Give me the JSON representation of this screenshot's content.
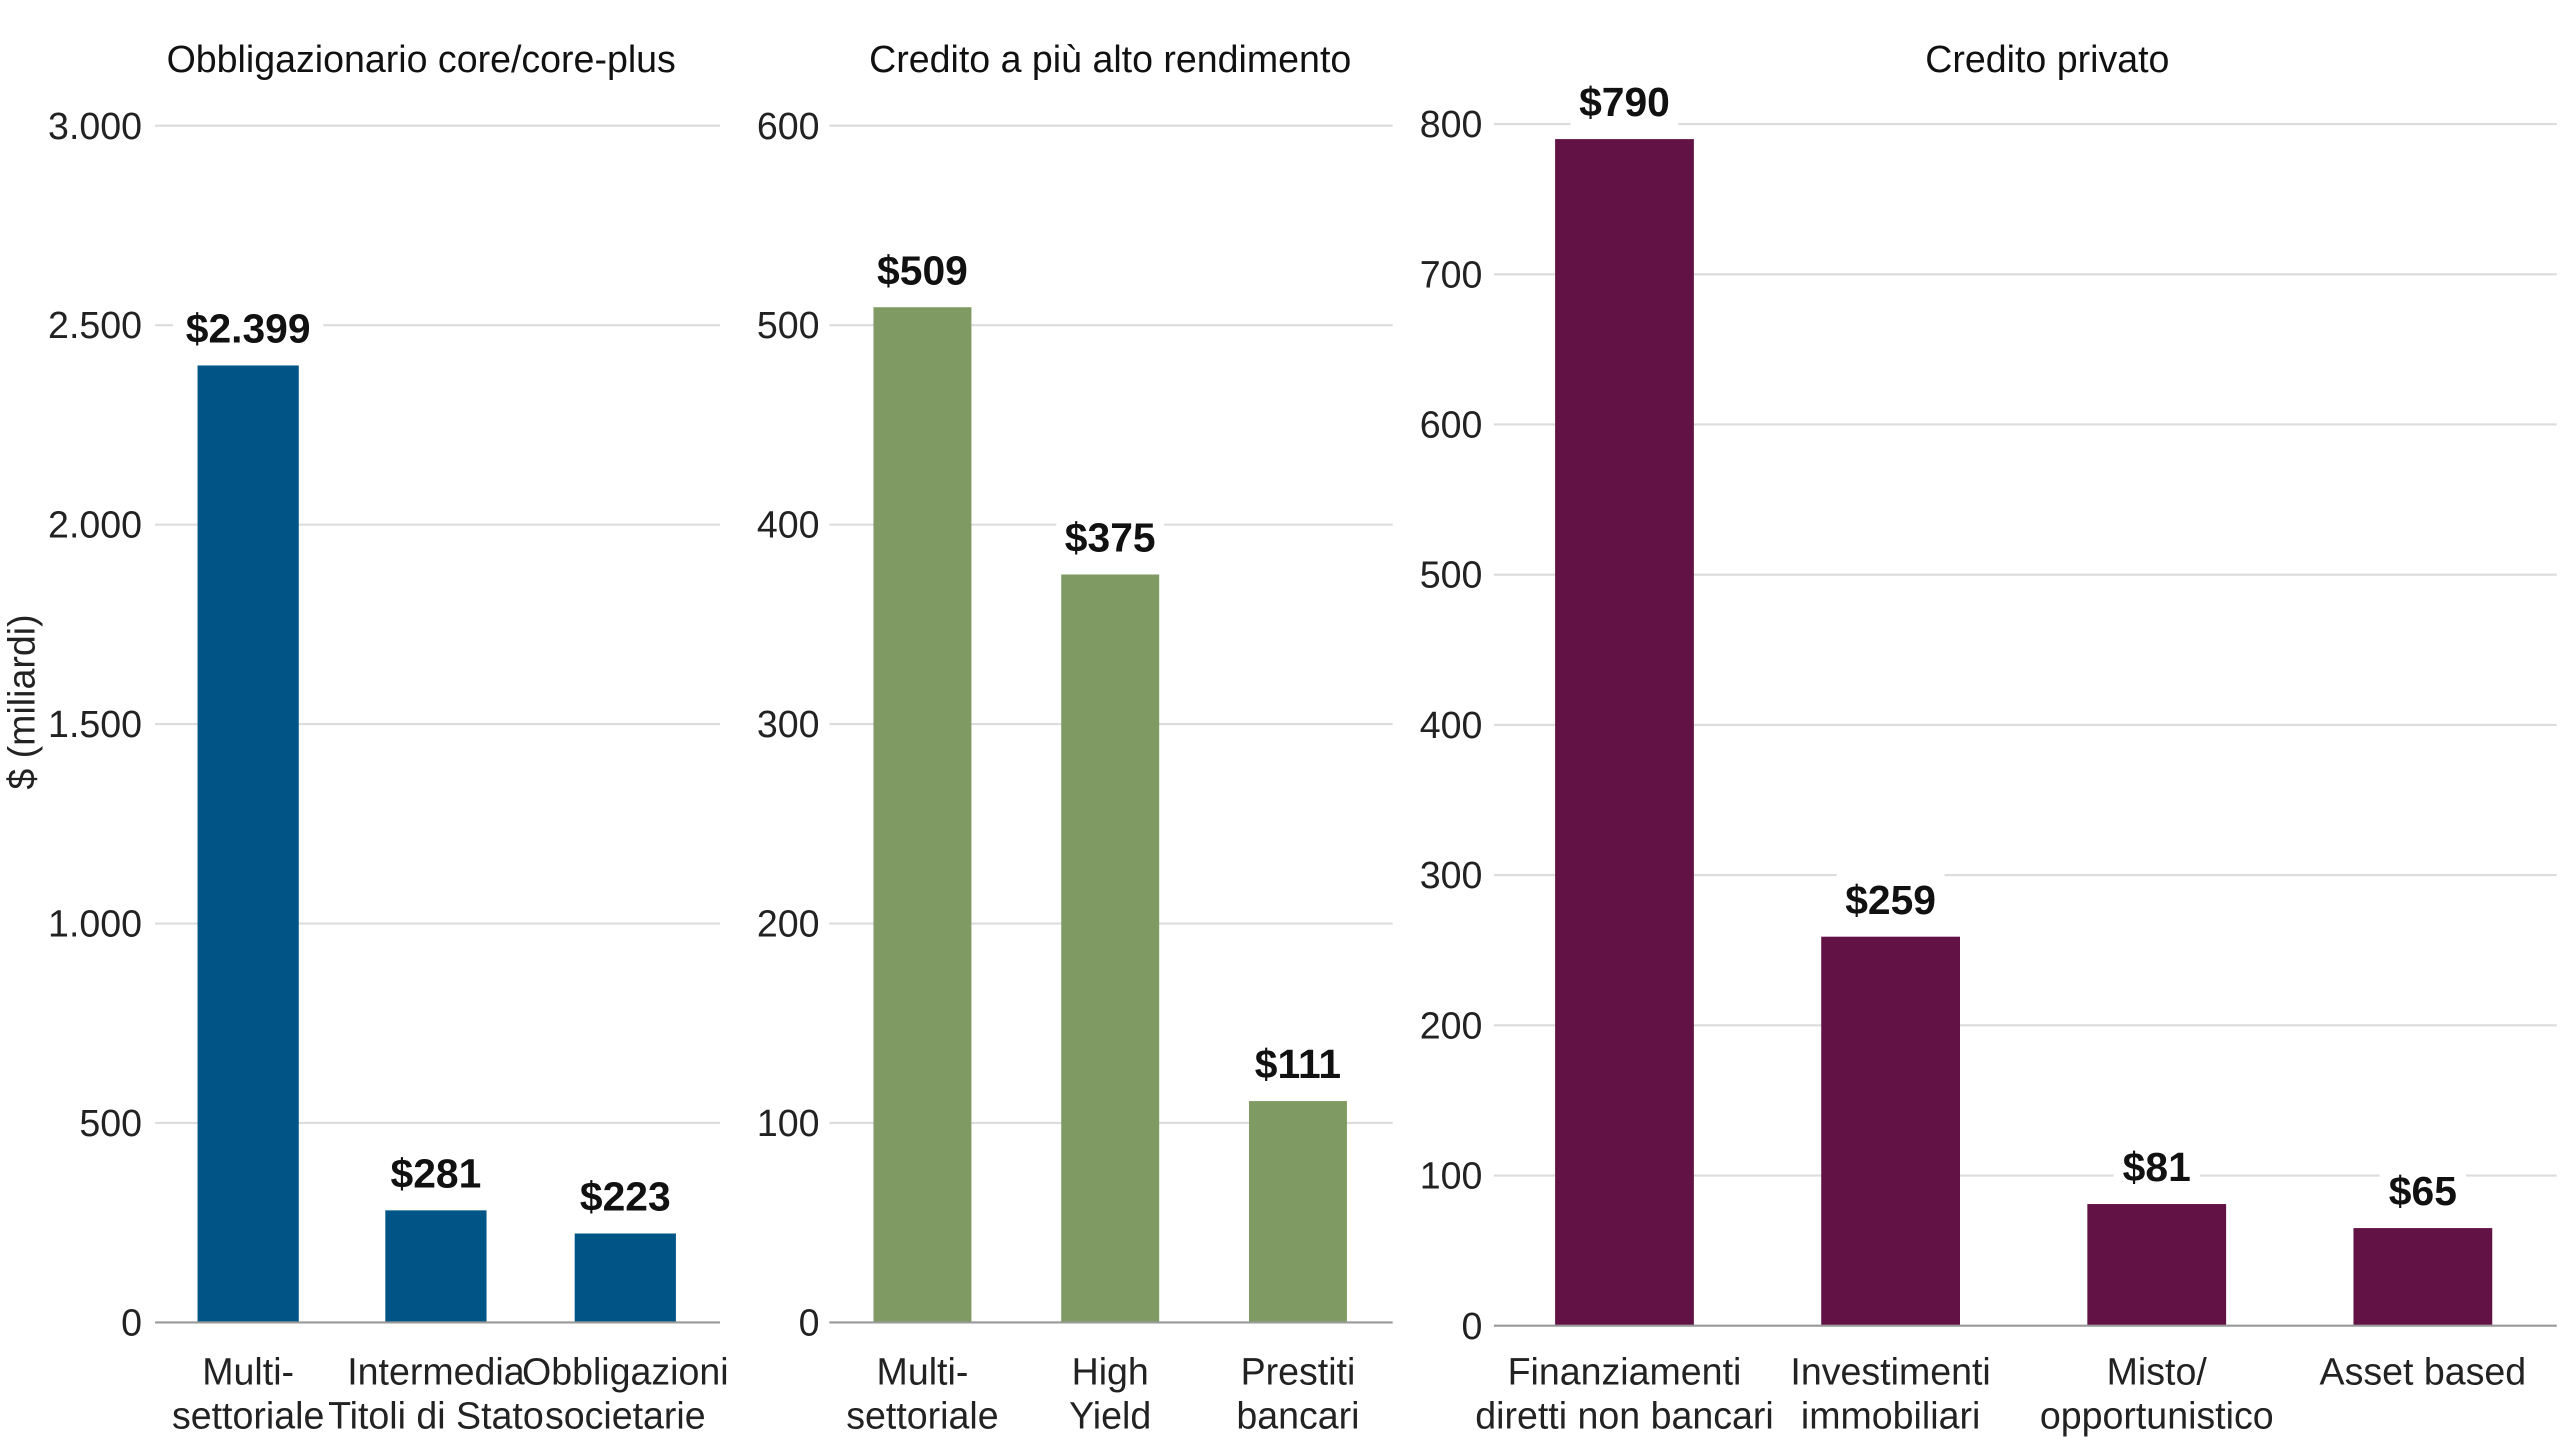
{
  "y_axis_label": "$ (miliardi)",
  "chart_data": [
    {
      "type": "bar",
      "title": "Obbligazionario core/core-plus",
      "ylabel": "$ (miliardi)",
      "ylim": [
        0,
        3000
      ],
      "ticks": [
        0,
        500,
        1000,
        1500,
        2000,
        2500,
        3000
      ],
      "tick_labels": [
        "0",
        "500",
        "1.000",
        "1.500",
        "2.000",
        "2.500",
        "3.000"
      ],
      "categories": [
        [
          "Multi-",
          "settoriale"
        ],
        [
          "Intermedia",
          "Titoli di Stato"
        ],
        [
          "Obbligazioni",
          "societarie"
        ]
      ],
      "values": [
        2399,
        281,
        223
      ],
      "value_labels": [
        "$2.399",
        "$281",
        "$223"
      ],
      "color": "#005587",
      "grid": true
    },
    {
      "type": "bar",
      "title": "Credito a più alto rendimento",
      "ylim": [
        0,
        600
      ],
      "ticks": [
        0,
        100,
        200,
        300,
        400,
        500,
        600
      ],
      "tick_labels": [
        "0",
        "100",
        "200",
        "300",
        "400",
        "500",
        "600"
      ],
      "categories": [
        [
          "Multi-",
          "settoriale"
        ],
        [
          "High",
          "Yield"
        ],
        [
          "Prestiti",
          "bancari"
        ]
      ],
      "values": [
        509,
        375,
        111
      ],
      "value_labels": [
        "$509",
        "$375",
        "$111"
      ],
      "color": "#7f9a63",
      "grid": true
    },
    {
      "type": "bar",
      "title": "Credito privato",
      "ylim": [
        0,
        800
      ],
      "ticks": [
        0,
        100,
        200,
        300,
        400,
        500,
        600,
        700,
        800
      ],
      "tick_labels": [
        "0",
        "100",
        "200",
        "300",
        "400",
        "500",
        "600",
        "700",
        "800"
      ],
      "categories": [
        [
          "Finanziamenti",
          "diretti non bancari"
        ],
        [
          "Investimenti",
          "immobiliari"
        ],
        [
          "Misto/",
          "opportunistico"
        ],
        [
          "Asset based"
        ]
      ],
      "values": [
        790,
        259,
        81,
        65
      ],
      "value_labels": [
        "$790",
        "$259",
        "$81",
        "$65"
      ],
      "color": "#621244",
      "grid": true
    }
  ]
}
